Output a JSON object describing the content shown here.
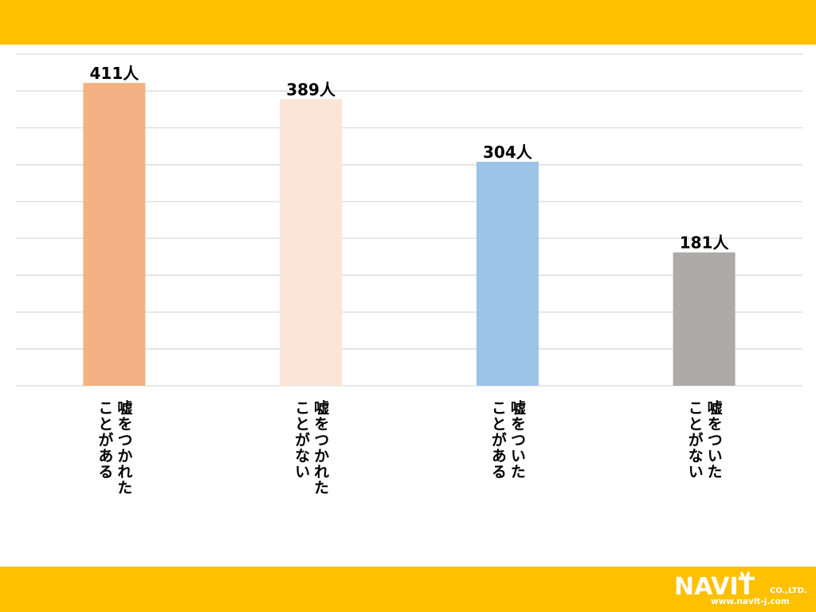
{
  "colors": {
    "band": "#ffc000",
    "grid": "#d9d9d9",
    "text": "#000000",
    "logo_text": "#ffffff"
  },
  "chart_data": {
    "type": "bar",
    "title": "",
    "xlabel": "",
    "ylabel": "",
    "ylim": [
      0,
      450
    ],
    "grid": true,
    "categories": [
      "嘘をつかれたことがある",
      "嘘をつかれたことがない",
      "嘘をついたことがある",
      "嘘をついたことがない"
    ],
    "category_columns": [
      [
        "嘘をつかれた",
        "ことがある"
      ],
      [
        "嘘をつかれた",
        "ことがない"
      ],
      [
        "嘘をついた",
        "ことがある"
      ],
      [
        "嘘をついた",
        "ことがない"
      ]
    ],
    "values": [
      411,
      389,
      304,
      181
    ],
    "data_labels": [
      "411人",
      "389人",
      "304人",
      "181人"
    ],
    "bar_colors": [
      "#f4b183",
      "#fbe5d6",
      "#9dc3e6",
      "#aeaaaa"
    ]
  },
  "logo": {
    "name": "NAVIT",
    "suffix": "CO.,LTD.",
    "url": "www.navit-j.com",
    "icon": "rabbit-ears-icon"
  }
}
